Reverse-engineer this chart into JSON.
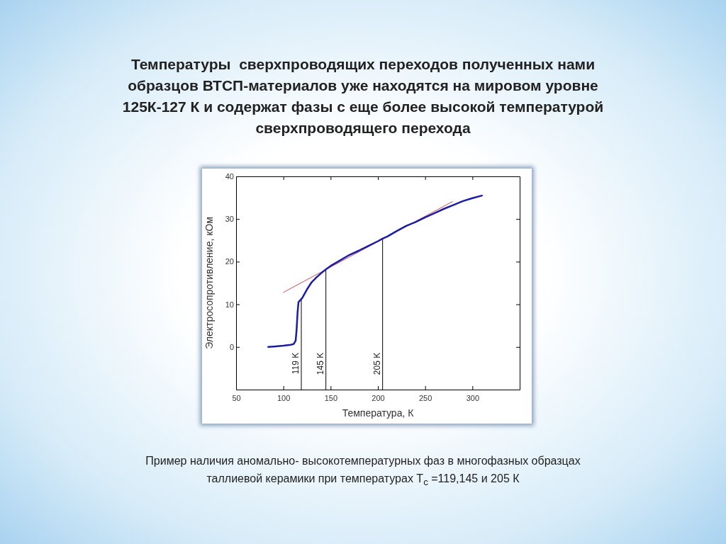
{
  "chart_data": {
    "type": "line",
    "title": "Температуры  сверхпроводящих переходов полученных нами образцов ВТСП-материалов уже находятся на мировом уровне 125К-127 К и содержат фазы с еще более высокой температурой сверхпроводящего перехода",
    "xlabel": "Температура, К",
    "ylabel": "Электросопротивление, кОм",
    "xlim": [
      50,
      350
    ],
    "ylim": [
      -10,
      40
    ],
    "xticks": [
      50,
      100,
      150,
      200,
      250,
      300
    ],
    "yticks": [
      0,
      10,
      20,
      30,
      40
    ],
    "grid": false,
    "line_style": "solid",
    "marker": "none",
    "series": [
      {
        "color": "#1c1ca8",
        "x": [
          84,
          90,
          100,
          108,
          111,
          113,
          114,
          115,
          116,
          118,
          120,
          125,
          130,
          135,
          140,
          145,
          150,
          160,
          170,
          180,
          190,
          200,
          205,
          210,
          220,
          230,
          240,
          250,
          260,
          270,
          280,
          290,
          300,
          310
        ],
        "values": [
          0,
          0.1,
          0.3,
          0.5,
          0.7,
          1.5,
          4,
          8,
          10.5,
          11,
          11.5,
          13.5,
          15.2,
          16.3,
          17.3,
          18.2,
          19,
          20.3,
          21.6,
          22.6,
          23.7,
          24.8,
          25.4,
          25.9,
          27.2,
          28.4,
          29.3,
          30.4,
          31.4,
          32.4,
          33.3,
          34.2,
          34.9,
          35.5
        ]
      },
      {
        "color": "#d05050",
        "x": [
          100,
          279
        ],
        "values": [
          12.8,
          34.1
        ]
      }
    ],
    "ref_lines": [
      {
        "axis": "x",
        "value": 119,
        "label": "119 K",
        "color": "#000000"
      },
      {
        "axis": "x",
        "value": 145,
        "label": "145 K",
        "color": "#000000"
      },
      {
        "axis": "x",
        "value": 205,
        "label": "205 K",
        "color": "#000000"
      }
    ],
    "annotations": [
      "Пример наличия аномально- высокотемпературных фаз в многофазных образцах таллиевой керамики при температурах T$_{c}$ =119,145 и 205 К"
    ]
  }
}
